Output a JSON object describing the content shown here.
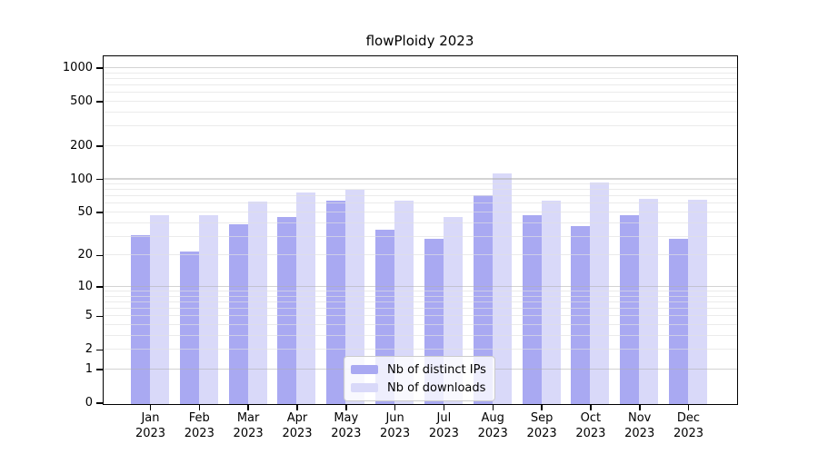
{
  "title": "flowPloidy 2023",
  "legend": {
    "items": [
      {
        "label": "Nb of distinct IPs",
        "color": "#a9a9f2"
      },
      {
        "label": "Nb of downloads",
        "color": "#d9d9f9"
      }
    ]
  },
  "chart_data": {
    "type": "bar",
    "title": "flowPloidy 2023",
    "categories": [
      "Jan 2023",
      "Feb 2023",
      "Mar 2023",
      "Apr 2023",
      "May 2023",
      "Jun 2023",
      "Jul 2023",
      "Aug 2023",
      "Sep 2023",
      "Oct 2023",
      "Nov 2023",
      "Dec 2023"
    ],
    "series": [
      {
        "name": "Nb of distinct IPs",
        "color": "#a9a9f2",
        "values": [
          31,
          22,
          39,
          46,
          65,
          35,
          29,
          73,
          48,
          38,
          48,
          29
        ]
      },
      {
        "name": "Nb of downloads",
        "color": "#d9d9f9",
        "values": [
          48,
          48,
          64,
          77,
          81,
          65,
          46,
          115,
          65,
          94,
          67,
          66
        ]
      }
    ],
    "xlabel": "",
    "ylabel": "",
    "yscale": "log1p",
    "ytick_values": [
      0,
      1,
      2,
      5,
      10,
      20,
      50,
      100,
      200,
      500,
      1000
    ],
    "ygrid_major_values": [
      1,
      10,
      100,
      1000
    ],
    "ygrid_minor_values": [
      2,
      3,
      4,
      5,
      6,
      7,
      8,
      9,
      20,
      30,
      40,
      50,
      60,
      70,
      80,
      90,
      200,
      300,
      400,
      500,
      600,
      700,
      800,
      900
    ],
    "ylim": [
      0,
      1300
    ],
    "grid": "horizontal major+minor, drawn over bars",
    "legend_position": "lower center inside plot"
  }
}
